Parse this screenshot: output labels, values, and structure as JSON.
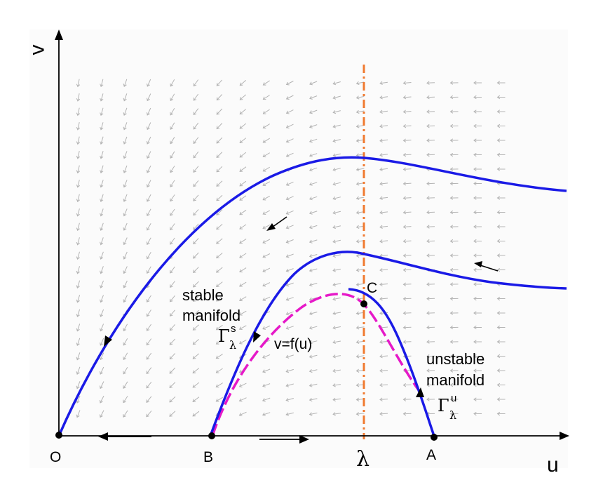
{
  "axes": {
    "x_label": "u",
    "y_label": "v"
  },
  "points": {
    "O": "O",
    "B": "B",
    "A": "A",
    "C": "C",
    "lambda": "λ"
  },
  "curve_label": "v=f(u)",
  "stable": {
    "line1": "stable",
    "line2": "manifold",
    "symbol": "Γ",
    "superscript": "s",
    "subscript": "λ"
  },
  "unstable": {
    "line1": "unstable",
    "line2": "manifold",
    "symbol": "Γ",
    "superscript": "u",
    "subscript": "λ"
  },
  "colors": {
    "trajectory": "#1a1ae6",
    "nullcline": "#e619c8",
    "lambda_line": "#f07a30",
    "field": "#b4b4b4",
    "axis": "#000000"
  }
}
